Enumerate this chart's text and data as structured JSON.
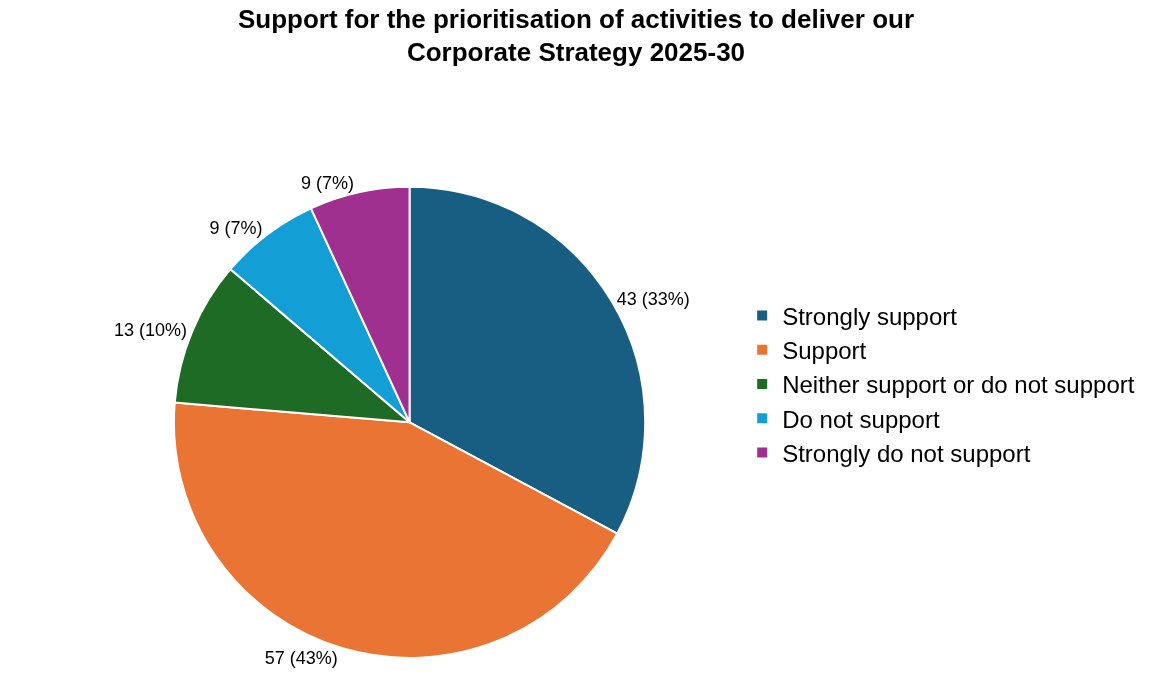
{
  "chart_data": {
    "type": "pie",
    "title": "Support for the prioritisation of activities to deliver our\nCorporate Strategy 2025-30",
    "categories": [
      "Strongly support",
      "Support",
      "Neither support or do not support",
      "Do not support",
      "Strongly do not support"
    ],
    "values": [
      43,
      57,
      13,
      9,
      9
    ],
    "value_labels": [
      "43 (33%)",
      "57 (43%)",
      "13 (10%)",
      "9 (7%)",
      "9 (7%)"
    ],
    "colors": [
      "#175e82",
      "#ea7434",
      "#1d6b24",
      "#139fd6",
      "#a0308f"
    ],
    "legend": "right"
  }
}
